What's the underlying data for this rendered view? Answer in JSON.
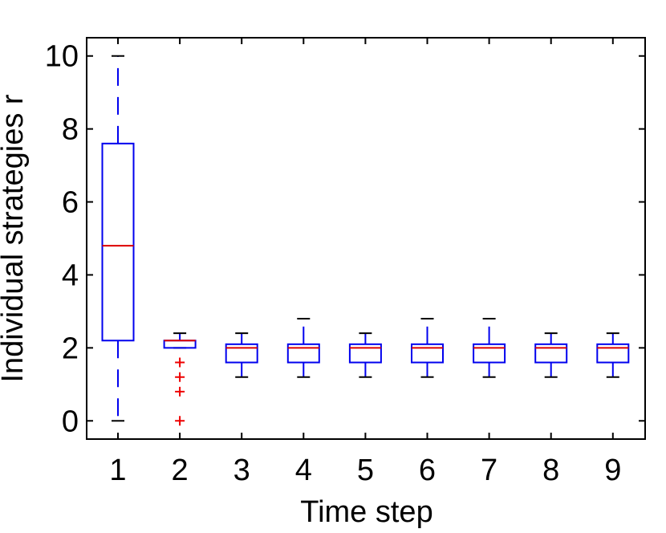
{
  "chart_data": {
    "type": "boxplot",
    "xlabel": "Time step",
    "ylabel": "Individual strategies r",
    "categories": [
      "1",
      "2",
      "3",
      "4",
      "5",
      "6",
      "7",
      "8",
      "9"
    ],
    "ylim": [
      -0.5,
      10.5
    ],
    "yticks": [
      "0",
      "2",
      "4",
      "6",
      "8",
      "10"
    ],
    "grid": false,
    "colors": {
      "box": "#0000ee",
      "median": "#dd0000",
      "whisker_cap": "#000000",
      "outlier": "#ee0000",
      "axis": "#000000"
    },
    "boxes": [
      {
        "label": "1",
        "whisker_low": 0,
        "q1": 2.2,
        "median": 4.8,
        "q3": 7.6,
        "whisker_high": 10,
        "outliers": []
      },
      {
        "label": "2",
        "whisker_low": 2.0,
        "q1": 2.0,
        "median": 2.2,
        "q3": 2.2,
        "whisker_high": 2.4,
        "outliers": [
          1.6,
          1.2,
          0.8,
          0
        ]
      },
      {
        "label": "3",
        "whisker_low": 1.2,
        "q1": 1.6,
        "median": 2.0,
        "q3": 2.1,
        "whisker_high": 2.4,
        "outliers": []
      },
      {
        "label": "4",
        "whisker_low": 1.2,
        "q1": 1.6,
        "median": 2.0,
        "q3": 2.1,
        "whisker_high": 2.8,
        "outliers": []
      },
      {
        "label": "5",
        "whisker_low": 1.2,
        "q1": 1.6,
        "median": 2.0,
        "q3": 2.1,
        "whisker_high": 2.4,
        "outliers": []
      },
      {
        "label": "6",
        "whisker_low": 1.2,
        "q1": 1.6,
        "median": 2.0,
        "q3": 2.1,
        "whisker_high": 2.8,
        "outliers": []
      },
      {
        "label": "7",
        "whisker_low": 1.2,
        "q1": 1.6,
        "median": 2.0,
        "q3": 2.1,
        "whisker_high": 2.8,
        "outliers": []
      },
      {
        "label": "8",
        "whisker_low": 1.2,
        "q1": 1.6,
        "median": 2.0,
        "q3": 2.1,
        "whisker_high": 2.4,
        "outliers": []
      },
      {
        "label": "9",
        "whisker_low": 1.2,
        "q1": 1.6,
        "median": 2.0,
        "q3": 2.1,
        "whisker_high": 2.4,
        "outliers": []
      }
    ]
  }
}
